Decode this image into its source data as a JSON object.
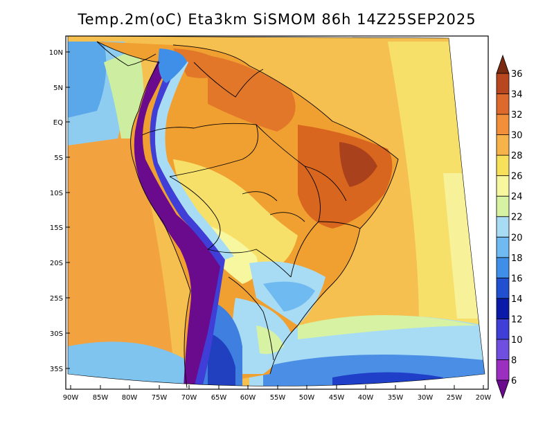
{
  "title": "Temp.2m(oC) Eta3km SiSMOM 86h 14Z25SEP2025",
  "lat_ticks": [
    "10N",
    "5N",
    "EQ",
    "5S",
    "10S",
    "15S",
    "20S",
    "25S",
    "30S",
    "35S"
  ],
  "lon_ticks": [
    "90W",
    "85W",
    "80W",
    "75W",
    "70W",
    "65W",
    "60W",
    "55W",
    "50W",
    "45W",
    "40W",
    "35W",
    "30W",
    "25W",
    "20W"
  ],
  "colorbar": {
    "levels": [
      "6",
      "8",
      "10",
      "12",
      "14",
      "16",
      "18",
      "20",
      "22",
      "24",
      "26",
      "28",
      "30",
      "32",
      "34",
      "36"
    ],
    "colors": [
      "#6a0a8c",
      "#9a2fc0",
      "#6f4fe0",
      "#3f3fd8",
      "#0a1aa8",
      "#2050d0",
      "#3f8fe8",
      "#6fbaf0",
      "#a8dcf5",
      "#d7f2a2",
      "#f7f7a0",
      "#f8e15a",
      "#f6b34a",
      "#f28f3b",
      "#dd6a2c",
      "#b8461f",
      "#7a2a10"
    ]
  }
}
